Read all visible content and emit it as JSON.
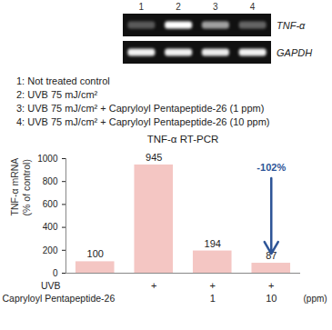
{
  "gel": {
    "lanes": [
      "1",
      "2",
      "3",
      "4"
    ],
    "bands": [
      "TNF-α",
      "GAPDH"
    ]
  },
  "lane_legend": [
    "1: Not treated control",
    "2: UVB 75 mJ/cm²",
    "3: UVB 75 mJ/cm² + Capryloyl Pentapeptide-26 (1 ppm)",
    "4: UVB 75 mJ/cm² + Capryloyl Pentapeptide-26 (10 ppm)"
  ],
  "chart_data": {
    "type": "bar",
    "title": "TNF-α RT-PCR",
    "y_label": "TNF-α mRNA\n(% of control)",
    "categories": [
      null,
      null,
      null,
      null
    ],
    "values": [
      100,
      945,
      194,
      87
    ],
    "color": "#f4c6c3",
    "ylim": [
      0,
      1000
    ],
    "yticks": [
      0,
      200,
      400,
      600,
      800,
      1000
    ],
    "grid": false,
    "data_labels": true,
    "tick_labels": "y",
    "annotations": [
      {
        "text": "-102%"
      }
    ],
    "treatments": [
      {
        "label": "UVB",
        "cells": [
          null,
          "+",
          "+",
          "+"
        ]
      },
      {
        "label": "Capryloyl Pentapeptide-26",
        "cells": [
          null,
          null,
          "1",
          "10"
        ],
        "unit": "(ppm)"
      }
    ]
  }
}
